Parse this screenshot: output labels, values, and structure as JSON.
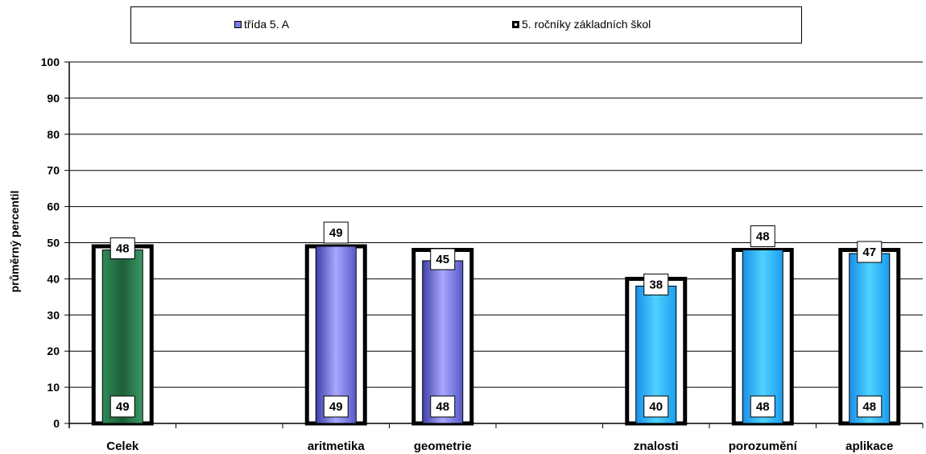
{
  "chart_data": {
    "type": "bar",
    "title": "",
    "ylabel": "průměrný percentil",
    "xlabel": "",
    "ylim": [
      0,
      100
    ],
    "yticks": [
      "0",
      "10",
      "20",
      "30",
      "40",
      "50",
      "60",
      "70",
      "80",
      "90",
      "100"
    ],
    "grid": true,
    "legend_position": "top",
    "slots": [
      "Celek",
      "",
      "aritmetika",
      "geometrie",
      "",
      "znalosti",
      "porozumění",
      "aplikace"
    ],
    "categories": [
      "Celek",
      "aritmetika",
      "geometrie",
      "znalosti",
      "porozumění",
      "aplikace"
    ],
    "series": [
      {
        "name": "třída  5. A",
        "values": [
          48,
          49,
          45,
          38,
          48,
          47
        ]
      },
      {
        "name": "5. ročníky základních škol",
        "values": [
          49,
          49,
          48,
          40,
          48,
          48
        ]
      }
    ],
    "bar_colors": [
      "#2e8b57",
      "#7878e6",
      "#7878e6",
      "#1eaaf0",
      "#1eaaf0",
      "#1eaaf0"
    ]
  }
}
